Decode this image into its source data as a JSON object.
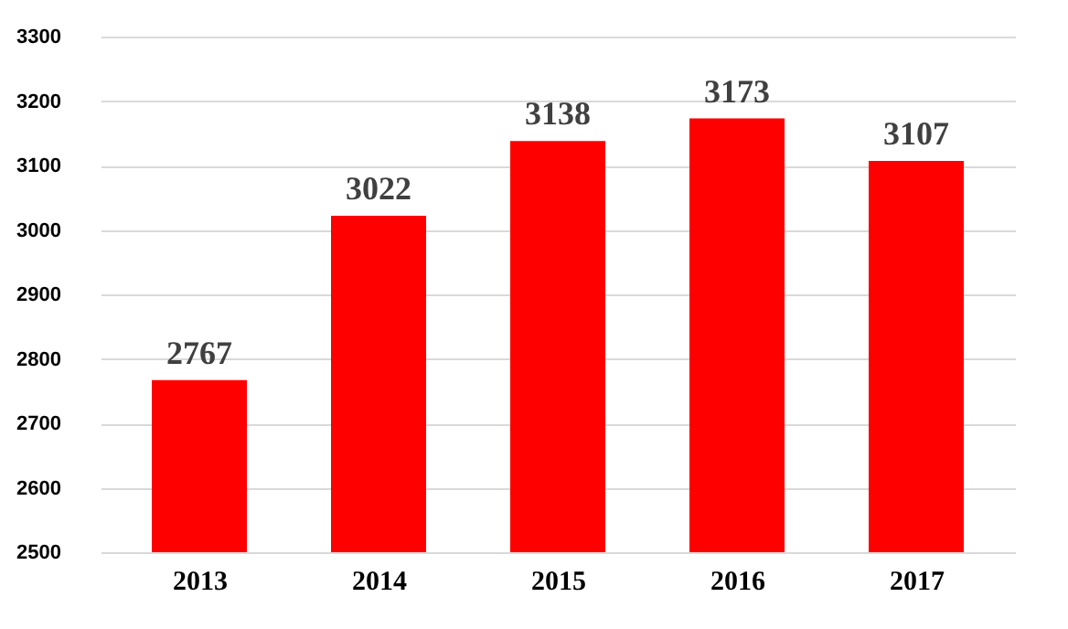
{
  "chart_data": {
    "type": "bar",
    "categories": [
      "2013",
      "2014",
      "2015",
      "2016",
      "2017"
    ],
    "values": [
      2767,
      3022,
      3138,
      3173,
      3107
    ],
    "color": "#ff0000",
    "ylim": [
      2500,
      3300
    ],
    "yticks": [
      2500,
      2600,
      2700,
      2800,
      2900,
      3000,
      3100,
      3200,
      3300
    ],
    "grid": "y",
    "data_labels": true
  }
}
